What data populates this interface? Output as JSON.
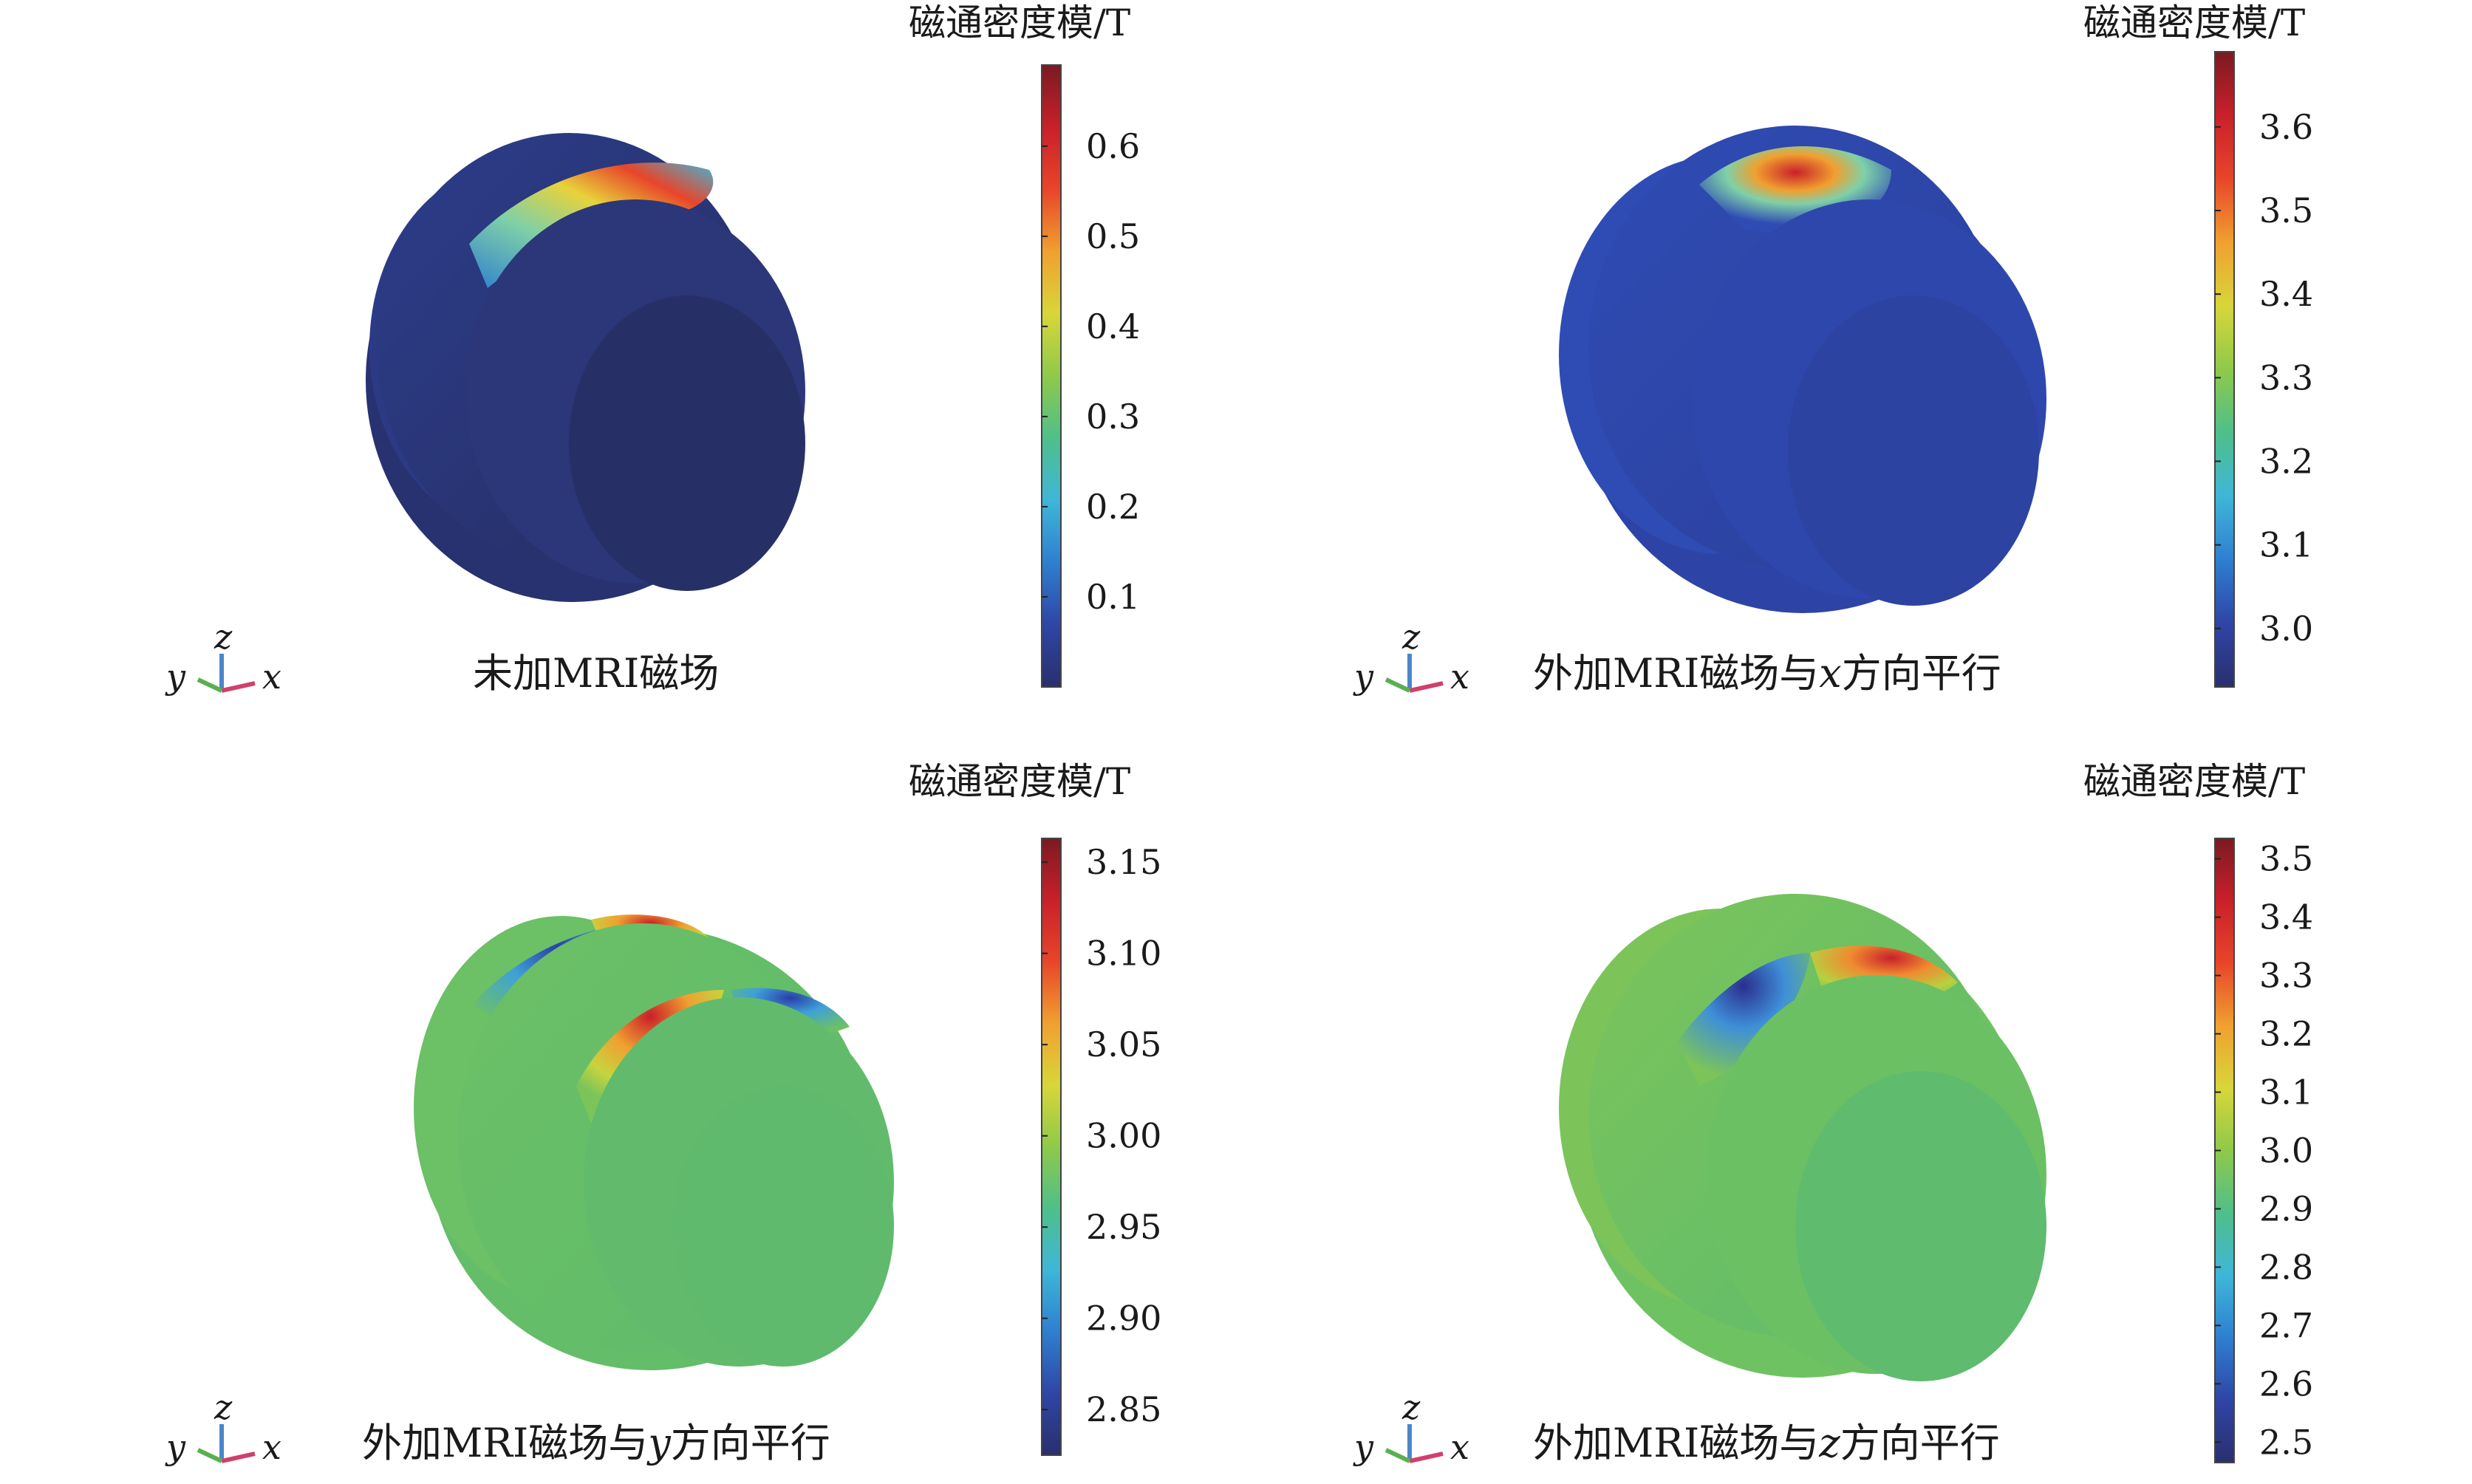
{
  "panels": [
    {
      "caption": "未加MRI磁场",
      "caption_parts": {
        "pre": "未加MRI磁场",
        "var": "",
        "post": ""
      },
      "colorbar": {
        "unit": "磁通密度模/T",
        "min": 0.0,
        "max": 0.69,
        "ticks": [
          "0.1",
          "0.2",
          "0.3",
          "0.4",
          "0.5",
          "0.6"
        ],
        "tick_values": [
          0.1,
          0.2,
          0.3,
          0.4,
          0.5,
          0.6
        ]
      },
      "triad": {
        "z": "z",
        "y": "y",
        "x": "x"
      }
    },
    {
      "caption": "外加MRI磁场与x方向平行",
      "caption_parts": {
        "pre": "外加MRI磁场与",
        "var": "x",
        "post": "方向平行"
      },
      "colorbar": {
        "unit": "磁通密度模/T",
        "min": 2.93,
        "max": 3.69,
        "ticks": [
          "3.0",
          "3.1",
          "3.2",
          "3.3",
          "3.4",
          "3.5",
          "3.6"
        ],
        "tick_values": [
          3.0,
          3.1,
          3.2,
          3.3,
          3.4,
          3.5,
          3.6
        ]
      },
      "triad": {
        "z": "z",
        "y": "y",
        "x": "x"
      }
    },
    {
      "caption": "外加MRI磁场与y方向平行",
      "caption_parts": {
        "pre": "外加MRI磁场与",
        "var": "y",
        "post": "方向平行"
      },
      "colorbar": {
        "unit": "磁通密度模/T",
        "min": 2.825,
        "max": 3.163,
        "ticks": [
          "2.85",
          "2.90",
          "2.95",
          "3.00",
          "3.05",
          "3.10",
          "3.15"
        ],
        "tick_values": [
          2.85,
          2.9,
          2.95,
          3.0,
          3.05,
          3.1,
          3.15
        ]
      },
      "triad": {
        "z": "z",
        "y": "y",
        "x": "x"
      }
    },
    {
      "caption": "外加MRI磁场与z方向平行",
      "caption_parts": {
        "pre": "外加MRI磁场与",
        "var": "z",
        "post": "方向平行"
      },
      "colorbar": {
        "unit": "磁通密度模/T",
        "min": 2.465,
        "max": 3.535,
        "ticks": [
          "2.5",
          "2.6",
          "2.7",
          "2.8",
          "2.9",
          "3.0",
          "3.1",
          "3.2",
          "3.3",
          "3.4",
          "3.5"
        ],
        "tick_values": [
          2.5,
          2.6,
          2.7,
          2.8,
          2.9,
          3.0,
          3.1,
          3.2,
          3.3,
          3.4,
          3.5
        ]
      },
      "triad": {
        "z": "z",
        "y": "y",
        "x": "x"
      }
    }
  ],
  "colors": {
    "colormap": [
      "#2a2f6e",
      "#2f45a6",
      "#2f7fd0",
      "#3fb6d8",
      "#4fbf8a",
      "#8fc94a",
      "#d8d63a",
      "#f0a030",
      "#e8452a",
      "#c9202a",
      "#7a1a22"
    ]
  }
}
